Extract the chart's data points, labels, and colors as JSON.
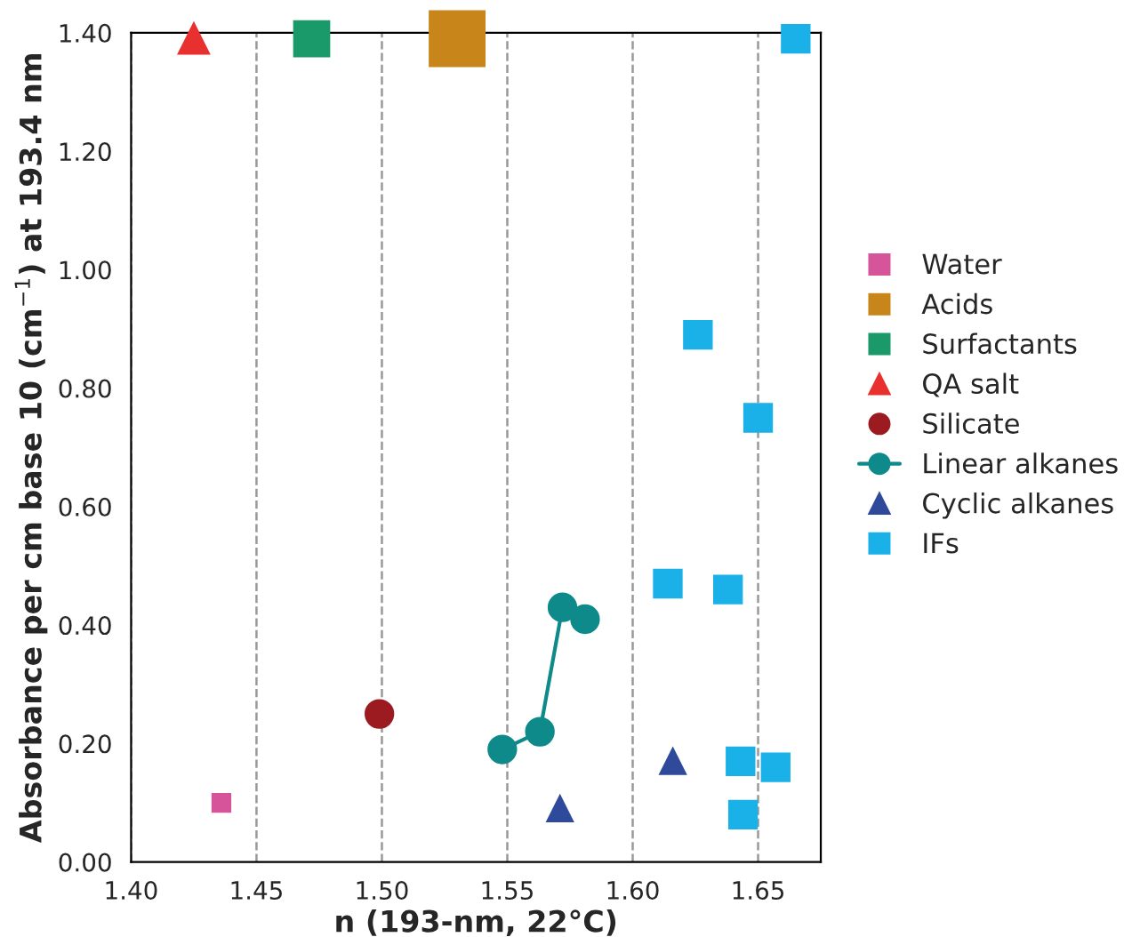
{
  "chart_data": {
    "type": "scatter",
    "xlabel": "n (193-nm, 22°C)",
    "ylabel": "Absorbance per cm base 10 (cm$^{−1}$) at 193.4 nm",
    "xlim": [
      1.4,
      1.675
    ],
    "xticks": [
      {
        "value": 1.4,
        "label": "1.40"
      },
      {
        "value": 1.45,
        "label": "1.45"
      },
      {
        "value": 1.5,
        "label": "1.50"
      },
      {
        "value": 1.55,
        "label": "1.55"
      },
      {
        "value": 1.6,
        "label": "1.60"
      },
      {
        "value": 1.65,
        "label": "1.65"
      }
    ],
    "ylim": [
      0,
      1.4
    ],
    "yticks": [
      {
        "value": 0,
        "label": "0.00"
      },
      {
        "value": 0.2,
        "label": "0.20"
      },
      {
        "value": 0.4,
        "label": "0.40"
      },
      {
        "value": 0.6,
        "label": "0.60"
      },
      {
        "value": 0.8,
        "label": "0.80"
      },
      {
        "value": 1.0,
        "label": "1.00"
      },
      {
        "value": 1.2,
        "label": "1.20"
      },
      {
        "value": 1.4,
        "label": "1.40"
      }
    ],
    "grid": "x",
    "legend": "right",
    "series": [
      {
        "name": "Water",
        "color": "#d6559a",
        "marker": "square",
        "x": [
          1.436
        ],
        "values": [
          0.1
        ]
      },
      {
        "name": "Acids",
        "color": "#c8861a",
        "marker": "square",
        "x": [
          1.53
        ],
        "values": [
          1.39
        ]
      },
      {
        "name": "Surfactants",
        "color": "#1a9a6a",
        "marker": "square",
        "x": [
          1.472
        ],
        "values": [
          1.39
        ]
      },
      {
        "name": "QA salt",
        "color": "#e8302e",
        "marker": "triangle",
        "x": [
          1.425
        ],
        "values": [
          1.39
        ]
      },
      {
        "name": "Silicate",
        "color": "#9b1b20",
        "marker": "circle",
        "x": [
          1.499
        ],
        "values": [
          0.25
        ]
      },
      {
        "name": "Linear alkanes",
        "type": "line",
        "color": "#0f8a8a",
        "marker": "circle",
        "x": [
          1.548,
          1.563,
          1.572,
          1.581
        ],
        "values": [
          0.19,
          0.22,
          0.43,
          0.41
        ]
      },
      {
        "name": "Cyclic alkanes",
        "color": "#2f4a9a",
        "marker": "triangle",
        "x": [
          1.571,
          1.616
        ],
        "values": [
          0.09,
          0.17
        ]
      },
      {
        "name": "IFs",
        "color": "#1ab0e8",
        "marker": "square",
        "x": [
          1.665,
          1.626,
          1.65,
          1.614,
          1.638,
          1.643,
          1.657,
          1.644
        ],
        "values": [
          1.39,
          0.89,
          0.75,
          0.47,
          0.46,
          0.17,
          0.16,
          0.08
        ]
      }
    ]
  }
}
